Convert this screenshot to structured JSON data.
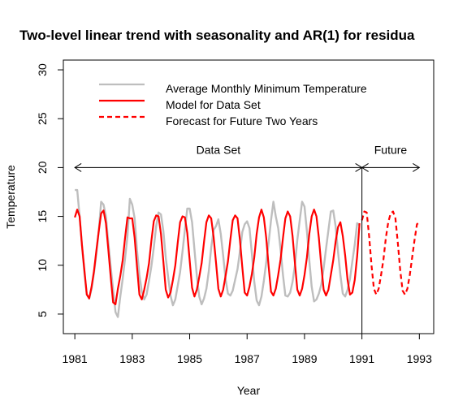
{
  "chart_data": {
    "type": "line",
    "title": "Two-level linear trend with seasonality and AR(1) for residua",
    "xlabel": "Year",
    "ylabel": "Temperature",
    "xlim": [
      1980.6,
      1993.5
    ],
    "ylim": [
      3,
      31
    ],
    "x_ticks": [
      1981,
      1983,
      1985,
      1987,
      1989,
      1991,
      1993
    ],
    "y_ticks": [
      5,
      10,
      15,
      20,
      25,
      30
    ],
    "grid": false,
    "legend_position": "top-left",
    "legend": [
      {
        "label": "Average Monthly Minimum Temperature",
        "color": "#bebebe",
        "style": "solid"
      },
      {
        "label": "Model for Data Set",
        "color": "#ff0000",
        "style": "solid"
      },
      {
        "label": "Forecast for Future Two Years",
        "color": "#ff0000",
        "style": "dashed"
      }
    ],
    "annotations": {
      "data_set_label": "Data Set",
      "future_label": "Future",
      "arrow_y": 20,
      "data_range": [
        1981,
        1991
      ],
      "future_range": [
        1991,
        1993
      ],
      "divider_x": 1991
    },
    "series": [
      {
        "name": "Average Monthly Minimum Temperature",
        "color": "#bebebe",
        "start": 1981,
        "step_years": 0.0833333,
        "values": [
          17.7,
          17.7,
          15.0,
          12.0,
          9.2,
          7.0,
          6.6,
          7.6,
          9.2,
          11.2,
          13.5,
          16.5,
          16.2,
          15.0,
          12.3,
          9.8,
          7.5,
          5.2,
          4.7,
          6.8,
          8.6,
          10.7,
          13.0,
          16.8,
          16.2,
          14.8,
          11.5,
          9.0,
          7.3,
          6.5,
          7.0,
          8.4,
          9.9,
          11.8,
          14.0,
          15.4,
          15.2,
          13.5,
          10.8,
          8.8,
          6.9,
          5.9,
          6.5,
          7.9,
          9.3,
          11.4,
          13.6,
          15.8,
          15.8,
          14.4,
          11.6,
          8.9,
          6.8,
          6.0,
          6.6,
          7.6,
          9.4,
          11.8,
          13.6,
          14.0,
          14.7,
          13.2,
          11.0,
          8.6,
          7.1,
          6.9,
          7.4,
          8.5,
          9.6,
          11.4,
          13.4,
          14.2,
          14.5,
          13.8,
          11.2,
          8.3,
          6.4,
          5.9,
          6.8,
          8.4,
          10.3,
          12.3,
          14.6,
          16.5,
          15.0,
          13.8,
          11.6,
          9.0,
          6.9,
          6.8,
          7.2,
          8.3,
          10.0,
          12.6,
          14.6,
          16.5,
          16.0,
          13.5,
          10.5,
          7.8,
          6.3,
          6.5,
          7.1,
          8.0,
          9.7,
          11.7,
          13.6,
          15.5,
          15.6,
          14.0,
          11.4,
          9.0,
          7.1,
          6.8,
          7.5,
          8.6,
          10.4,
          12.1,
          14.3,
          14.1
        ]
      },
      {
        "name": "Model for Data Set",
        "color": "#ff0000",
        "start": 1981,
        "step_years": 0.0833333,
        "values": [
          14.9,
          15.7,
          15.0,
          12.0,
          9.5,
          7.0,
          6.6,
          7.8,
          9.4,
          11.5,
          13.5,
          15.3,
          15.6,
          14.3,
          11.6,
          8.8,
          6.2,
          6.0,
          7.6,
          8.9,
          10.5,
          12.8,
          14.9,
          14.8,
          14.8,
          12.8,
          9.8,
          7.0,
          6.5,
          7.5,
          8.7,
          10.2,
          12.5,
          14.5,
          15.1,
          15.0,
          13.2,
          10.4,
          7.5,
          6.7,
          7.2,
          8.5,
          10.0,
          12.3,
          14.4,
          15.0,
          14.9,
          13.3,
          10.5,
          7.7,
          6.8,
          7.5,
          8.8,
          10.2,
          12.4,
          14.4,
          15.1,
          14.8,
          12.9,
          10.3,
          7.6,
          6.8,
          7.5,
          8.9,
          10.4,
          12.6,
          14.6,
          15.1,
          14.8,
          12.6,
          9.8,
          7.2,
          6.9,
          7.8,
          9.1,
          10.8,
          13.2,
          14.9,
          15.7,
          14.9,
          12.8,
          9.9,
          7.3,
          6.9,
          7.6,
          9.0,
          10.6,
          12.8,
          14.8,
          15.5,
          15.0,
          13.0,
          10.2,
          7.5,
          6.9,
          7.6,
          9.0,
          10.8,
          13.2,
          15.0,
          15.7,
          15.0,
          12.8,
          10.0,
          7.5,
          6.9,
          7.5,
          9.0,
          10.5,
          12.4,
          13.9,
          14.4,
          13.0,
          11.0,
          8.5,
          7.0,
          7.2,
          8.5,
          10.9,
          14.3
        ]
      },
      {
        "name": "Forecast for Future Two Years",
        "color": "#ff0000",
        "style": "dashed",
        "start": 1991,
        "step_years": 0.0833333,
        "values": [
          14.6,
          15.5,
          15.4,
          13.0,
          10.0,
          7.6,
          7.0,
          7.6,
          9.0,
          10.6,
          12.8,
          14.4,
          15.3,
          15.5,
          14.8,
          12.3,
          9.5,
          7.4,
          7.0,
          7.6,
          9.0,
          10.8,
          12.6,
          14.2,
          14.4
        ]
      }
    ]
  }
}
